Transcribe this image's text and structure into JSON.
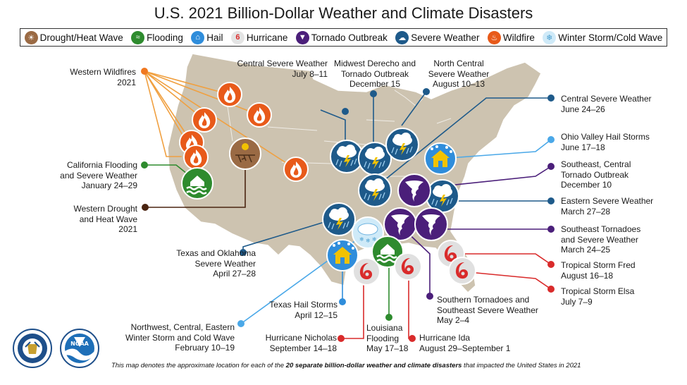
{
  "title": "U.S. 2021 Billion-Dollar Weather and Climate Disasters",
  "legend": [
    {
      "label": "Drought/Heat Wave",
      "icon": "drought-icon",
      "color": "#8a5a3a"
    },
    {
      "label": "Flooding",
      "icon": "flooding-icon",
      "color": "#2e8b2e"
    },
    {
      "label": "Hail",
      "icon": "hail-icon",
      "color": "#2f8ddb"
    },
    {
      "label": "Hurricane",
      "icon": "hurricane-icon",
      "color": "#d92b2b"
    },
    {
      "label": "Tornado Outbreak",
      "icon": "tornado-icon",
      "color": "#4b1f7a"
    },
    {
      "label": "Severe Weather",
      "icon": "severe-weather-icon",
      "color": "#1e5a8a"
    },
    {
      "label": "Wildfire",
      "icon": "wildfire-icon",
      "color": "#e85a1a"
    },
    {
      "label": "Winter Storm/Cold Wave",
      "icon": "winter-storm-icon",
      "color": "#7fc8ee"
    }
  ],
  "events": {
    "western_wildfires": [
      "Western Wildfires",
      "2021"
    ],
    "california_flooding": [
      "California Flooding",
      "and Severe Weather",
      "January 24–29"
    ],
    "western_drought": [
      "Western Drought",
      "and Heat Wave",
      "2021"
    ],
    "texas_oklahoma": [
      "Texas and Oklahoma",
      "Severe Weather",
      "April 27–28"
    ],
    "winter_storm": [
      "Northwest, Central, Eastern",
      "Winter Storm and Cold Wave",
      "February 10–19"
    ],
    "texas_hail": [
      "Texas Hail Storms",
      "April 12–15"
    ],
    "hurricane_nicholas": [
      "Hurricane Nicholas",
      "September 14–18"
    ],
    "louisiana_flooding": [
      "Louisiana",
      "Flooding",
      "May 17–18"
    ],
    "hurricane_ida": [
      "Hurricane Ida",
      "August 29–September 1"
    ],
    "southern_tornadoes": [
      "Southern Tornadoes and",
      "Southeast Severe Weather",
      "May 2–4"
    ],
    "central_severe_july": [
      "Central Severe Weather",
      "July 8–11"
    ],
    "midwest_derecho": [
      "Midwest Derecho and",
      "Tornado Outbreak",
      "December 15"
    ],
    "north_central": [
      "North Central",
      "Severe Weather",
      "August 10–13"
    ],
    "central_severe_june": [
      "Central Severe Weather",
      "June 24–26"
    ],
    "ohio_valley_hail": [
      "Ohio Valley Hail Storms",
      "June 17–18"
    ],
    "southeast_central_tornado": [
      "Southeast, Central",
      "Tornado Outbreak",
      "December 10"
    ],
    "eastern_severe": [
      "Eastern Severe Weather",
      "March 27–28"
    ],
    "southeast_tornadoes": [
      "Southeast Tornadoes",
      "and Severe Weather",
      "March 24–25"
    ],
    "tropical_storm_fred": [
      "Tropical Storm Fred",
      "August 16–18"
    ],
    "tropical_storm_elsa": [
      "Tropical Storm Elsa",
      "July 7–9"
    ]
  },
  "footnote": {
    "prefix": "This map denotes the approximate location for each of the ",
    "bold": "20 separate billion-dollar weather and climate disasters",
    "suffix": " that impacted the United States in 2021"
  },
  "seals": {
    "commerce": "DEPARTMENT OF COMMERCE",
    "noaa": "NOAA"
  }
}
